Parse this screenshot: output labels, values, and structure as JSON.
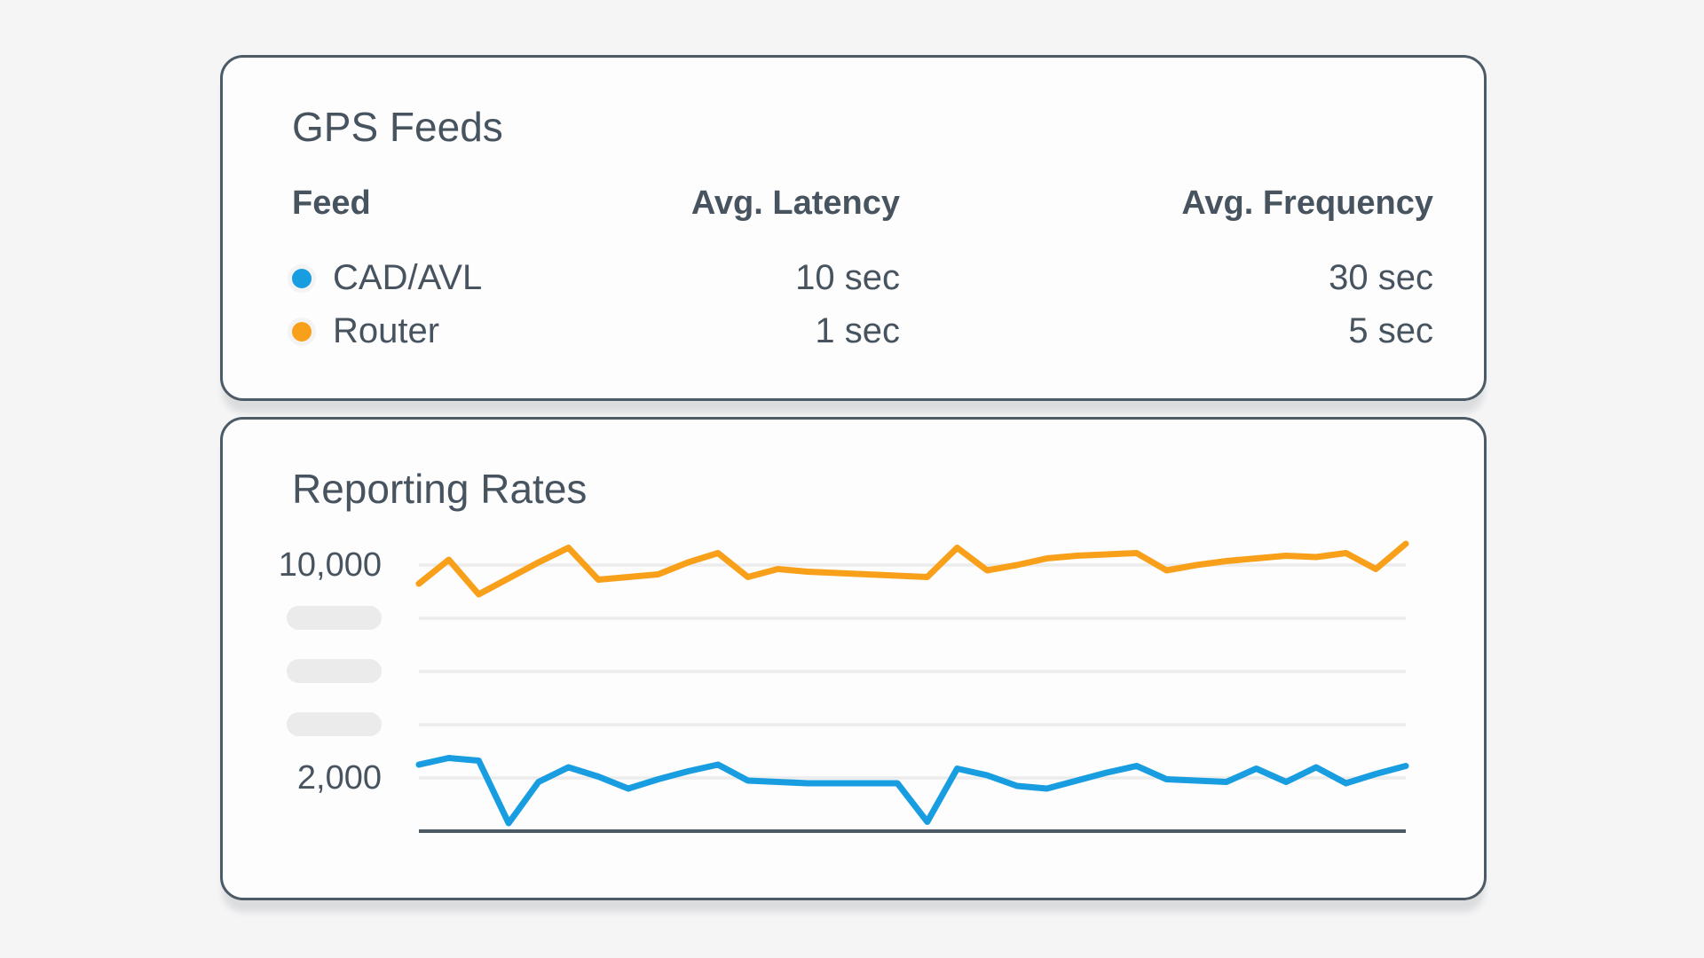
{
  "page": {
    "background": "#f5f5f6",
    "card_border_color": "#4d5b66",
    "text_color": "#47545f"
  },
  "gps_feeds": {
    "title": "GPS Feeds",
    "columns": [
      "Feed",
      "Avg. Latency",
      "Avg. Frequency"
    ],
    "rows": [
      {
        "feed": "CAD/AVL",
        "dot_color": "#189DE1",
        "avg_latency": "10 sec",
        "avg_frequency": "30 sec"
      },
      {
        "feed": "Router",
        "dot_color": "#F9A01B",
        "avg_latency": "1 sec",
        "avg_frequency": "5 sec"
      }
    ]
  },
  "reporting_rates": {
    "title": "Reporting Rates"
  },
  "chart_data": {
    "type": "line",
    "title": "Reporting Rates",
    "xlabel": "",
    "ylabel": "",
    "x": [
      0,
      1,
      2,
      3,
      4,
      5,
      6,
      7,
      8,
      9,
      10,
      11,
      12,
      13,
      14,
      15,
      16,
      17,
      18,
      19,
      20,
      21,
      22,
      23,
      24,
      25,
      26,
      27,
      28,
      29,
      30,
      31,
      32,
      33
    ],
    "series": [
      {
        "name": "CAD/AVL",
        "color": "#189DE1",
        "values": [
          2500,
          2750,
          2650,
          300,
          1850,
          2400,
          2050,
          1600,
          1950,
          2250,
          2500,
          1900,
          1850,
          1800,
          1800,
          1800,
          1800,
          350,
          2350,
          2100,
          1700,
          1600,
          1900,
          2200,
          2450,
          1950,
          1900,
          1850,
          2350,
          1850,
          2400,
          1800,
          2150,
          2450
        ]
      },
      {
        "name": "Router",
        "color": "#F9A01B",
        "values": [
          9300,
          10200,
          8900,
          9500,
          10100,
          10650,
          9450,
          9550,
          9650,
          10100,
          10450,
          9550,
          9850,
          9750,
          9700,
          9650,
          9600,
          9550,
          10650,
          9800,
          10000,
          10250,
          10350,
          10400,
          10450,
          9800,
          10000,
          10150,
          10250,
          10350,
          10300,
          10450,
          9850,
          10800
        ]
      }
    ],
    "ylim": [
      0,
      11900
    ],
    "yticks": [
      {
        "value": 10000,
        "label": "10,000"
      },
      {
        "value": 8000,
        "label": ""
      },
      {
        "value": 6000,
        "label": ""
      },
      {
        "value": 4000,
        "label": ""
      },
      {
        "value": 2000,
        "label": "2,000"
      }
    ],
    "hidden_tick_placeholders": 3,
    "grid": true,
    "legend_position": "none",
    "x_axis_labels": "none",
    "colors": {
      "grid": "#ececec",
      "axis": "#4b5a64",
      "placeholder_pill": "#ebebeb"
    }
  }
}
